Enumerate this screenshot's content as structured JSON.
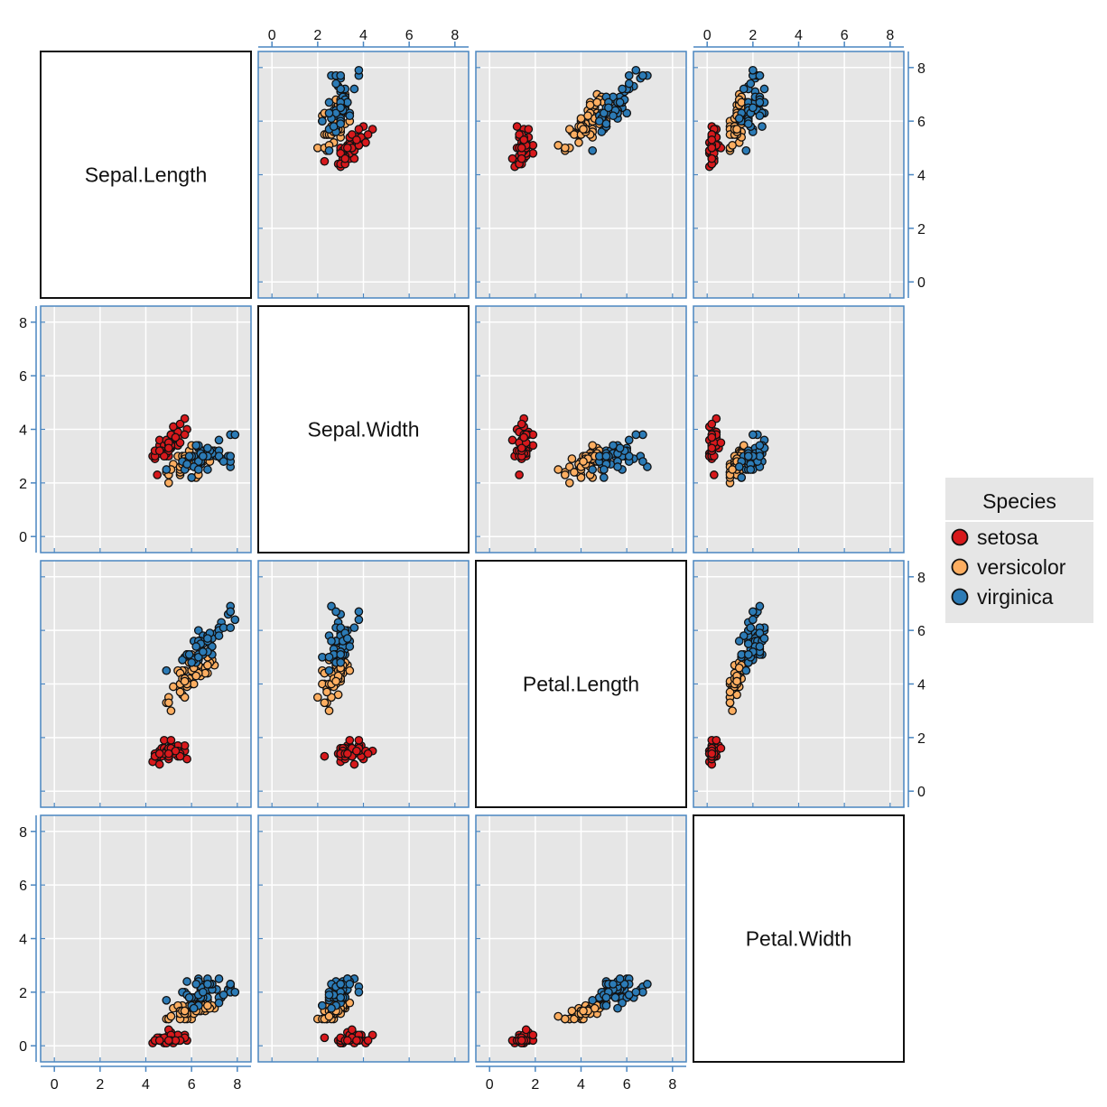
{
  "chart_data": {
    "type": "scatter",
    "variables": [
      "Sepal.Length",
      "Sepal.Width",
      "Petal.Length",
      "Petal.Width"
    ],
    "axis_range": [
      -0.6,
      8.6
    ],
    "ticks": [
      0,
      2,
      4,
      6,
      8
    ],
    "grid": true,
    "legend": {
      "title": "Species",
      "position": "right",
      "entries": [
        {
          "name": "setosa",
          "color": "#d7191c"
        },
        {
          "name": "versicolor",
          "color": "#fdae61"
        },
        {
          "name": "virginica",
          "color": "#2c7bb6"
        }
      ]
    },
    "colors": {
      "panel_bg": "#e6e6e6",
      "panel_border": "#4a86c0",
      "grid": "#ffffff",
      "point_outline": "#111111",
      "legend_bg": "#e6e6e6"
    },
    "series": [
      {
        "name": "setosa",
        "points": [
          [
            5.1,
            3.5,
            1.4,
            0.2
          ],
          [
            4.9,
            3.0,
            1.4,
            0.2
          ],
          [
            4.7,
            3.2,
            1.3,
            0.2
          ],
          [
            4.6,
            3.1,
            1.5,
            0.2
          ],
          [
            5.0,
            3.6,
            1.4,
            0.2
          ],
          [
            5.4,
            3.9,
            1.7,
            0.4
          ],
          [
            4.6,
            3.4,
            1.4,
            0.3
          ],
          [
            5.0,
            3.4,
            1.5,
            0.2
          ],
          [
            4.4,
            2.9,
            1.4,
            0.2
          ],
          [
            4.9,
            3.1,
            1.5,
            0.1
          ],
          [
            5.4,
            3.7,
            1.5,
            0.2
          ],
          [
            4.8,
            3.4,
            1.6,
            0.2
          ],
          [
            4.8,
            3.0,
            1.4,
            0.1
          ],
          [
            4.3,
            3.0,
            1.1,
            0.1
          ],
          [
            5.8,
            4.0,
            1.2,
            0.2
          ],
          [
            5.7,
            4.4,
            1.5,
            0.4
          ],
          [
            5.4,
            3.9,
            1.3,
            0.4
          ],
          [
            5.1,
            3.5,
            1.4,
            0.3
          ],
          [
            5.7,
            3.8,
            1.7,
            0.3
          ],
          [
            5.1,
            3.8,
            1.5,
            0.3
          ],
          [
            5.4,
            3.4,
            1.7,
            0.2
          ],
          [
            5.1,
            3.7,
            1.5,
            0.4
          ],
          [
            4.6,
            3.6,
            1.0,
            0.2
          ],
          [
            5.1,
            3.3,
            1.7,
            0.5
          ],
          [
            4.8,
            3.4,
            1.9,
            0.2
          ],
          [
            5.0,
            3.0,
            1.6,
            0.2
          ],
          [
            5.0,
            3.4,
            1.6,
            0.4
          ],
          [
            5.2,
            3.5,
            1.5,
            0.2
          ],
          [
            5.2,
            3.4,
            1.4,
            0.2
          ],
          [
            4.7,
            3.2,
            1.6,
            0.2
          ],
          [
            4.8,
            3.1,
            1.6,
            0.2
          ],
          [
            5.4,
            3.4,
            1.5,
            0.4
          ],
          [
            5.2,
            4.1,
            1.5,
            0.1
          ],
          [
            5.5,
            4.2,
            1.4,
            0.2
          ],
          [
            4.9,
            3.1,
            1.5,
            0.2
          ],
          [
            5.0,
            3.2,
            1.2,
            0.2
          ],
          [
            5.5,
            3.5,
            1.3,
            0.2
          ],
          [
            4.9,
            3.6,
            1.4,
            0.1
          ],
          [
            4.4,
            3.0,
            1.3,
            0.2
          ],
          [
            5.1,
            3.4,
            1.5,
            0.2
          ],
          [
            5.0,
            3.5,
            1.3,
            0.3
          ],
          [
            4.5,
            2.3,
            1.3,
            0.3
          ],
          [
            4.4,
            3.2,
            1.3,
            0.2
          ],
          [
            5.0,
            3.5,
            1.6,
            0.6
          ],
          [
            5.1,
            3.8,
            1.9,
            0.4
          ],
          [
            4.8,
            3.0,
            1.4,
            0.3
          ],
          [
            5.1,
            3.8,
            1.6,
            0.2
          ],
          [
            4.6,
            3.2,
            1.4,
            0.2
          ],
          [
            5.3,
            3.7,
            1.5,
            0.2
          ],
          [
            5.0,
            3.3,
            1.4,
            0.2
          ]
        ]
      },
      {
        "name": "versicolor",
        "points": [
          [
            7.0,
            3.2,
            4.7,
            1.4
          ],
          [
            6.4,
            3.2,
            4.5,
            1.5
          ],
          [
            6.9,
            3.1,
            4.9,
            1.5
          ],
          [
            5.5,
            2.3,
            4.0,
            1.3
          ],
          [
            6.5,
            2.8,
            4.6,
            1.5
          ],
          [
            5.7,
            2.8,
            4.5,
            1.3
          ],
          [
            6.3,
            3.3,
            4.7,
            1.6
          ],
          [
            4.9,
            2.4,
            3.3,
            1.0
          ],
          [
            6.6,
            2.9,
            4.6,
            1.3
          ],
          [
            5.2,
            2.7,
            3.9,
            1.4
          ],
          [
            5.0,
            2.0,
            3.5,
            1.0
          ],
          [
            5.9,
            3.0,
            4.2,
            1.5
          ],
          [
            6.0,
            2.2,
            4.0,
            1.0
          ],
          [
            6.1,
            2.9,
            4.7,
            1.4
          ],
          [
            5.6,
            2.9,
            3.6,
            1.3
          ],
          [
            6.7,
            3.1,
            4.4,
            1.4
          ],
          [
            5.6,
            3.0,
            4.5,
            1.5
          ],
          [
            5.8,
            2.7,
            4.1,
            1.0
          ],
          [
            6.2,
            2.2,
            4.5,
            1.5
          ],
          [
            5.6,
            2.5,
            3.9,
            1.1
          ],
          [
            5.9,
            3.2,
            4.8,
            1.8
          ],
          [
            6.1,
            2.8,
            4.0,
            1.3
          ],
          [
            6.3,
            2.5,
            4.9,
            1.5
          ],
          [
            6.1,
            2.8,
            4.7,
            1.2
          ],
          [
            6.4,
            2.9,
            4.3,
            1.3
          ],
          [
            6.6,
            3.0,
            4.4,
            1.4
          ],
          [
            6.8,
            2.8,
            4.8,
            1.4
          ],
          [
            6.7,
            3.0,
            5.0,
            1.7
          ],
          [
            6.0,
            2.9,
            4.5,
            1.5
          ],
          [
            5.7,
            2.6,
            3.5,
            1.0
          ],
          [
            5.5,
            2.4,
            3.8,
            1.1
          ],
          [
            5.5,
            2.4,
            3.7,
            1.0
          ],
          [
            5.8,
            2.7,
            3.9,
            1.2
          ],
          [
            6.0,
            2.7,
            5.1,
            1.6
          ],
          [
            5.4,
            3.0,
            4.5,
            1.5
          ],
          [
            6.0,
            3.4,
            4.5,
            1.6
          ],
          [
            6.7,
            3.1,
            4.7,
            1.5
          ],
          [
            6.3,
            2.3,
            4.4,
            1.3
          ],
          [
            5.6,
            3.0,
            4.1,
            1.3
          ],
          [
            5.5,
            2.5,
            4.0,
            1.3
          ],
          [
            5.5,
            2.6,
            4.4,
            1.2
          ],
          [
            6.1,
            3.0,
            4.6,
            1.4
          ],
          [
            5.8,
            2.6,
            4.0,
            1.2
          ],
          [
            5.0,
            2.3,
            3.3,
            1.0
          ],
          [
            5.6,
            2.7,
            4.2,
            1.3
          ],
          [
            5.7,
            3.0,
            4.2,
            1.2
          ],
          [
            5.7,
            2.9,
            4.2,
            1.3
          ],
          [
            6.2,
            2.9,
            4.3,
            1.3
          ],
          [
            5.1,
            2.5,
            3.0,
            1.1
          ],
          [
            5.7,
            2.8,
            4.1,
            1.3
          ]
        ]
      },
      {
        "name": "virginica",
        "points": [
          [
            6.3,
            3.3,
            6.0,
            2.5
          ],
          [
            5.8,
            2.7,
            5.1,
            1.9
          ],
          [
            7.1,
            3.0,
            5.9,
            2.1
          ],
          [
            6.3,
            2.9,
            5.6,
            1.8
          ],
          [
            6.5,
            3.0,
            5.8,
            2.2
          ],
          [
            7.6,
            3.0,
            6.6,
            2.1
          ],
          [
            4.9,
            2.5,
            4.5,
            1.7
          ],
          [
            7.3,
            2.9,
            6.3,
            1.8
          ],
          [
            6.7,
            2.5,
            5.8,
            1.8
          ],
          [
            7.2,
            3.6,
            6.1,
            2.5
          ],
          [
            6.5,
            3.2,
            5.1,
            2.0
          ],
          [
            6.4,
            2.7,
            5.3,
            1.9
          ],
          [
            6.8,
            3.0,
            5.5,
            2.1
          ],
          [
            5.7,
            2.5,
            5.0,
            2.0
          ],
          [
            5.8,
            2.8,
            5.1,
            2.4
          ],
          [
            6.4,
            3.2,
            5.3,
            2.3
          ],
          [
            6.5,
            3.0,
            5.5,
            1.8
          ],
          [
            7.7,
            3.8,
            6.7,
            2.2
          ],
          [
            7.7,
            2.6,
            6.9,
            2.3
          ],
          [
            6.0,
            2.2,
            5.0,
            1.5
          ],
          [
            6.9,
            3.2,
            5.7,
            2.3
          ],
          [
            5.6,
            2.8,
            4.9,
            2.0
          ],
          [
            7.7,
            2.8,
            6.7,
            2.0
          ],
          [
            6.3,
            2.7,
            4.9,
            1.8
          ],
          [
            6.7,
            3.3,
            5.7,
            2.1
          ],
          [
            7.2,
            3.2,
            6.0,
            1.8
          ],
          [
            6.2,
            2.8,
            4.8,
            1.8
          ],
          [
            6.1,
            3.0,
            4.9,
            1.8
          ],
          [
            6.4,
            2.8,
            5.6,
            2.1
          ],
          [
            7.2,
            3.0,
            5.8,
            1.6
          ],
          [
            7.4,
            2.8,
            6.1,
            1.9
          ],
          [
            7.9,
            3.8,
            6.4,
            2.0
          ],
          [
            6.4,
            2.8,
            5.6,
            2.2
          ],
          [
            6.3,
            2.8,
            5.1,
            1.5
          ],
          [
            6.1,
            2.6,
            5.6,
            1.4
          ],
          [
            7.7,
            3.0,
            6.1,
            2.3
          ],
          [
            6.3,
            3.4,
            5.6,
            2.4
          ],
          [
            6.4,
            3.1,
            5.5,
            1.8
          ],
          [
            6.0,
            3.0,
            4.8,
            1.8
          ],
          [
            6.9,
            3.1,
            5.4,
            2.1
          ],
          [
            6.7,
            3.1,
            5.6,
            2.4
          ],
          [
            6.9,
            3.1,
            5.1,
            2.3
          ],
          [
            5.8,
            2.7,
            5.1,
            1.9
          ],
          [
            6.8,
            3.2,
            5.9,
            2.3
          ],
          [
            6.7,
            3.3,
            5.7,
            2.5
          ],
          [
            6.7,
            3.0,
            5.2,
            2.3
          ],
          [
            6.3,
            2.5,
            5.0,
            1.9
          ],
          [
            6.5,
            3.0,
            5.2,
            2.0
          ],
          [
            6.2,
            3.4,
            5.4,
            2.3
          ],
          [
            5.9,
            3.0,
            5.1,
            1.8
          ]
        ]
      }
    ]
  }
}
